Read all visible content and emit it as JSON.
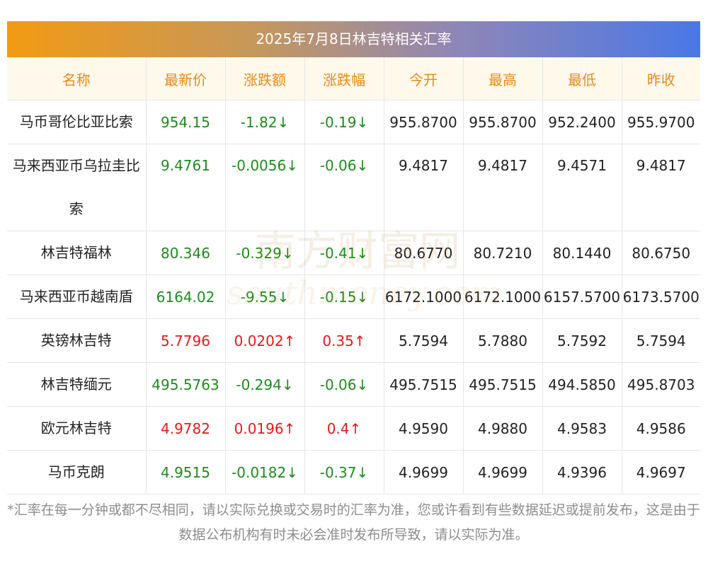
{
  "title": "2025年7月8日林吉特相关汇率",
  "headers": [
    "名称",
    "最新价",
    "涨跌额",
    "涨跌幅",
    "今开",
    "最高",
    "最低",
    "昨收"
  ],
  "rows": [
    {
      "name": "马币哥伦比亚比索",
      "latest": "954.15",
      "change": "-1.82↓",
      "pct": "-0.19↓",
      "open": "955.8700",
      "high": "955.8700",
      "low": "952.2400",
      "prev": "955.9700",
      "dir": "down"
    },
    {
      "name": "马来西亚币乌拉圭比索",
      "latest": "9.4761",
      "change": "-0.0056↓",
      "pct": "-0.06↓",
      "open": "9.4817",
      "high": "9.4817",
      "low": "9.4571",
      "prev": "9.4817",
      "dir": "down"
    },
    {
      "name": "林吉特福林",
      "latest": "80.346",
      "change": "-0.329↓",
      "pct": "-0.41↓",
      "open": "80.6770",
      "high": "80.7210",
      "low": "80.1440",
      "prev": "80.6750",
      "dir": "down"
    },
    {
      "name": "马来西亚币越南盾",
      "latest": "6164.02",
      "change": "-9.55↓",
      "pct": "-0.15↓",
      "open": "6172.1000",
      "high": "6172.1000",
      "low": "6157.5700",
      "prev": "6173.5700",
      "dir": "down"
    },
    {
      "name": "英镑林吉特",
      "latest": "5.7796",
      "change": "0.0202↑",
      "pct": "0.35↑",
      "open": "5.7594",
      "high": "5.7880",
      "low": "5.7592",
      "prev": "5.7594",
      "dir": "up"
    },
    {
      "name": "林吉特缅元",
      "latest": "495.5763",
      "change": "-0.294↓",
      "pct": "-0.06↓",
      "open": "495.7515",
      "high": "495.7515",
      "low": "494.5850",
      "prev": "495.8703",
      "dir": "down"
    },
    {
      "name": "欧元林吉特",
      "latest": "4.9782",
      "change": "0.0196↑",
      "pct": "0.4↑",
      "open": "4.9590",
      "high": "4.9880",
      "low": "4.9583",
      "prev": "4.9586",
      "dir": "up"
    },
    {
      "name": "马币克朗",
      "latest": "4.9515",
      "change": "-0.0182↓",
      "pct": "-0.37↓",
      "open": "4.9699",
      "high": "4.9699",
      "low": "4.9396",
      "prev": "4.9697",
      "dir": "down"
    }
  ],
  "footnote": "*汇率在每一分钟或都不尽相同，请以实际兑换或交易时的汇率为准，您或许看到有些数据延迟或提前发布，这是由于数据公布机构有时未必会准时发布所导致，请以实际为准。",
  "watermark": {
    "cn": "南方财富网",
    "en": "southmoney.com"
  },
  "colors": {
    "up": "#e21a1a",
    "down": "#1f8a1f",
    "header_text": "#e8891b",
    "header_bg": "#fff9ec",
    "title_gradient_start": "#f39a13",
    "title_gradient_end": "#4a78e6"
  }
}
